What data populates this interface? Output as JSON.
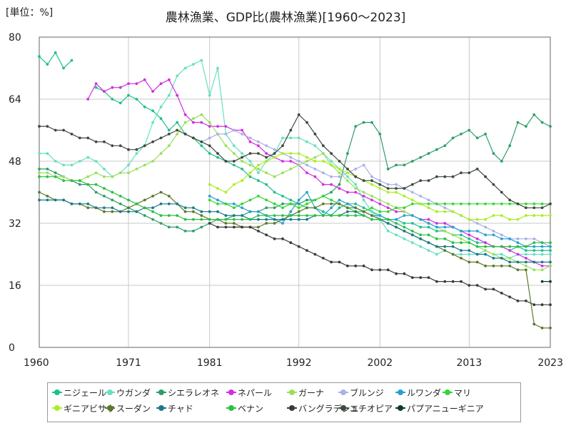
{
  "unit_label": "[単位：%]",
  "chart_data": {
    "type": "line",
    "title": "農林漁業、GDP比(農林漁業)[1960〜2023]",
    "xlabel": "",
    "ylabel": "",
    "xlim": [
      1960,
      2023
    ],
    "ylim": [
      0,
      80
    ],
    "x_ticks": [
      1960,
      1971,
      1981,
      1992,
      2002,
      2013,
      2023
    ],
    "y_ticks": [
      0,
      16,
      32,
      48,
      64,
      80
    ],
    "grid": true,
    "legend_position": "bottom",
    "series": [
      {
        "name": "ニジェール",
        "color": "#1fbf8f",
        "start": 1960,
        "values": [
          75,
          73,
          76,
          72,
          74,
          null,
          null,
          67,
          66,
          64,
          63,
          65,
          64,
          62,
          61,
          59,
          56,
          58,
          55,
          54,
          52,
          50,
          49,
          48,
          47,
          46,
          44,
          43,
          42,
          40,
          39,
          38,
          37,
          36,
          36,
          35,
          34,
          36,
          37,
          37,
          36,
          35,
          34,
          33,
          33,
          32,
          32,
          31,
          31,
          30,
          30,
          29,
          29,
          28,
          27,
          27,
          26,
          26,
          25,
          26,
          25,
          25,
          25,
          25
        ]
      },
      {
        "name": "ウガンダ",
        "color": "#66e0c0",
        "start": 1960,
        "values": [
          50,
          50,
          48,
          47,
          47,
          48,
          49,
          48,
          46,
          44,
          45,
          47,
          50,
          52,
          58,
          62,
          65,
          70,
          72,
          73,
          74,
          65,
          72,
          55,
          52,
          50,
          48,
          45,
          48,
          50,
          54,
          54,
          54,
          53,
          52,
          50,
          48,
          46,
          44,
          42,
          38,
          35,
          33,
          30,
          29,
          28,
          27,
          26,
          25,
          24,
          25,
          24,
          24,
          24,
          24,
          25,
          24,
          24,
          23,
          24,
          24,
          24,
          24,
          24
        ]
      },
      {
        "name": "シエラレオネ",
        "color": "#2e9e6a",
        "start": 1960,
        "values": [
          46,
          46,
          45,
          44,
          43,
          42,
          42,
          40,
          39,
          38,
          37,
          36,
          35,
          34,
          33,
          32,
          31,
          31,
          30,
          30,
          31,
          32,
          33,
          33,
          34,
          34,
          35,
          35,
          36,
          36,
          37,
          37,
          37,
          38,
          38,
          39,
          40,
          42,
          50,
          57,
          58,
          58,
          55,
          46,
          47,
          47,
          48,
          49,
          50,
          51,
          52,
          54,
          55,
          56,
          54,
          55,
          50,
          48,
          52,
          58,
          57,
          60,
          58,
          57
        ]
      },
      {
        "name": "ネパール",
        "color": "#d030e0",
        "start": 1960,
        "values": [
          null,
          null,
          null,
          null,
          null,
          null,
          64,
          68,
          66,
          67,
          67,
          68,
          68,
          69,
          66,
          68,
          69,
          65,
          60,
          58,
          58,
          57,
          57,
          57,
          56,
          56,
          53,
          52,
          50,
          49,
          48,
          48,
          47,
          45,
          44,
          42,
          42,
          41,
          40,
          40,
          39,
          38,
          37,
          36,
          35,
          35,
          34,
          33,
          33,
          32,
          32,
          31,
          30,
          29,
          28,
          27,
          26,
          26,
          25,
          24,
          23,
          22,
          21,
          21
        ]
      },
      {
        "name": "ガーナ",
        "color": "#99e05a",
        "start": 1960,
        "values": [
          45,
          45,
          44,
          44,
          43,
          43,
          44,
          45,
          44,
          44,
          45,
          45,
          46,
          47,
          48,
          50,
          52,
          55,
          58,
          59,
          60,
          58,
          55,
          52,
          50,
          48,
          47,
          46,
          45,
          44,
          45,
          46,
          47,
          48,
          49,
          50,
          47,
          45,
          43,
          41,
          40,
          39,
          38,
          37,
          36,
          35,
          34,
          33,
          32,
          31,
          30,
          29,
          28,
          27,
          26,
          25,
          24,
          23,
          23,
          22,
          21,
          20,
          20,
          21
        ]
      },
      {
        "name": "ブルンジ",
        "color": "#aab0e8",
        "start": 1960,
        "values": [
          null,
          null,
          null,
          null,
          null,
          null,
          null,
          null,
          null,
          null,
          null,
          null,
          null,
          null,
          null,
          null,
          null,
          null,
          null,
          null,
          53,
          54,
          55,
          55,
          56,
          55,
          54,
          53,
          52,
          51,
          50,
          49,
          48,
          47,
          46,
          45,
          44,
          44,
          45,
          46,
          47,
          44,
          43,
          42,
          42,
          41,
          40,
          39,
          38,
          37,
          36,
          35,
          34,
          33,
          32,
          31,
          30,
          29,
          28,
          28,
          28,
          28,
          27,
          26
        ]
      },
      {
        "name": "ルワンダ",
        "color": "#2a9fd0",
        "start": 1960,
        "values": [
          null,
          null,
          null,
          null,
          null,
          null,
          null,
          null,
          null,
          null,
          null,
          null,
          null,
          null,
          null,
          null,
          null,
          null,
          null,
          null,
          null,
          39,
          38,
          37,
          37,
          36,
          35,
          35,
          34,
          33,
          32,
          35,
          38,
          40,
          36,
          34,
          36,
          38,
          37,
          36,
          35,
          34,
          34,
          33,
          33,
          34,
          34,
          33,
          32,
          31,
          31,
          31,
          30,
          30,
          30,
          29,
          29,
          28,
          28,
          27,
          26,
          26,
          26,
          26
        ]
      },
      {
        "name": "マリ",
        "color": "#33d633",
        "start": 1960,
        "values": [
          null,
          null,
          null,
          null,
          null,
          null,
          null,
          null,
          null,
          null,
          null,
          null,
          null,
          null,
          null,
          null,
          null,
          null,
          null,
          null,
          null,
          38,
          37,
          37,
          36,
          37,
          38,
          39,
          38,
          37,
          36,
          37,
          36,
          37,
          38,
          39,
          38,
          37,
          36,
          35,
          35,
          36,
          35,
          35,
          36,
          36,
          37,
          37,
          37,
          37,
          37,
          37,
          37,
          37,
          37,
          37,
          37,
          37,
          37,
          37,
          37,
          37,
          37,
          37
        ]
      },
      {
        "name": "ギニアビサウ",
        "color": "#aaee22",
        "start": 1960,
        "values": [
          null,
          null,
          null,
          null,
          null,
          null,
          null,
          null,
          null,
          null,
          null,
          null,
          null,
          null,
          null,
          null,
          null,
          null,
          null,
          null,
          null,
          42,
          41,
          40,
          42,
          43,
          45,
          47,
          48,
          49,
          50,
          50,
          50,
          49,
          48,
          48,
          47,
          46,
          45,
          44,
          43,
          42,
          41,
          40,
          40,
          39,
          38,
          37,
          36,
          35,
          35,
          35,
          34,
          33,
          33,
          33,
          34,
          34,
          33,
          33,
          34,
          34,
          34,
          34
        ]
      },
      {
        "name": "スーダン",
        "color": "#5a7a2a",
        "start": 1960,
        "values": [
          40,
          39,
          38,
          38,
          37,
          37,
          36,
          36,
          35,
          35,
          35,
          36,
          37,
          38,
          39,
          40,
          39,
          37,
          35,
          35,
          34,
          33,
          33,
          32,
          32,
          31,
          31,
          31,
          32,
          32,
          33,
          34,
          35,
          36,
          36,
          37,
          37,
          37,
          36,
          36,
          35,
          34,
          33,
          32,
          31,
          30,
          29,
          28,
          27,
          26,
          25,
          24,
          23,
          22,
          22,
          21,
          21,
          21,
          21,
          20,
          20,
          6,
          5,
          5
        ]
      },
      {
        "name": "チャド",
        "color": "#1a7a8a",
        "start": 1960,
        "values": [
          38,
          38,
          38,
          38,
          37,
          37,
          37,
          36,
          36,
          36,
          35,
          35,
          35,
          36,
          36,
          37,
          37,
          37,
          36,
          36,
          35,
          35,
          35,
          34,
          34,
          34,
          33,
          33,
          33,
          33,
          33,
          33,
          33,
          33,
          34,
          34,
          34,
          34,
          35,
          35,
          34,
          33,
          33,
          32,
          31,
          30,
          29,
          28,
          27,
          26,
          26,
          26,
          25,
          25,
          24,
          24,
          23,
          23,
          22,
          22,
          22,
          22,
          22,
          22
        ]
      },
      {
        "name": "ベナン",
        "color": "#28c040",
        "start": 1960,
        "values": [
          44,
          44,
          44,
          43,
          43,
          43,
          42,
          42,
          41,
          40,
          39,
          38,
          37,
          36,
          35,
          34,
          34,
          34,
          33,
          33,
          33,
          33,
          33,
          33,
          33,
          33,
          33,
          34,
          34,
          34,
          34,
          34,
          34,
          34,
          34,
          34,
          34,
          34,
          34,
          34,
          34,
          33,
          33,
          33,
          32,
          31,
          30,
          29,
          29,
          28,
          28,
          27,
          27,
          27,
          26,
          26,
          26,
          26,
          26,
          26,
          26,
          27,
          27,
          27
        ]
      },
      {
        "name": "バングラデシュ",
        "color": "#3a3a3a",
        "start": 1960,
        "values": [
          null,
          null,
          null,
          null,
          null,
          null,
          null,
          null,
          null,
          null,
          null,
          null,
          null,
          null,
          null,
          null,
          null,
          null,
          null,
          null,
          null,
          32,
          31,
          31,
          31,
          31,
          31,
          30,
          29,
          28,
          28,
          27,
          26,
          25,
          24,
          23,
          22,
          22,
          21,
          21,
          21,
          20,
          20,
          20,
          19,
          19,
          18,
          18,
          18,
          17,
          17,
          17,
          17,
          16,
          16,
          15,
          15,
          14,
          13,
          12,
          12,
          11,
          11,
          11
        ]
      },
      {
        "name": "エチオピア",
        "color": "#3d4a3d",
        "start": 1960,
        "values": [
          57,
          57,
          56,
          56,
          55,
          54,
          54,
          53,
          53,
          52,
          52,
          51,
          51,
          52,
          53,
          54,
          55,
          56,
          55,
          54,
          53,
          52,
          50,
          48,
          48,
          49,
          50,
          50,
          49,
          50,
          52,
          56,
          60,
          58,
          55,
          52,
          50,
          48,
          46,
          44,
          43,
          43,
          42,
          41,
          41,
          41,
          42,
          43,
          43,
          44,
          44,
          44,
          45,
          45,
          46,
          44,
          42,
          40,
          38,
          37,
          36,
          36,
          36,
          37
        ]
      },
      {
        "name": "パプアニューギニア",
        "color": "#0a3a2a",
        "start": 1960,
        "values": [
          null,
          null,
          null,
          null,
          null,
          null,
          null,
          null,
          null,
          null,
          null,
          null,
          null,
          null,
          null,
          null,
          null,
          null,
          null,
          null,
          null,
          null,
          null,
          null,
          null,
          null,
          null,
          null,
          null,
          null,
          null,
          null,
          null,
          null,
          null,
          null,
          null,
          null,
          null,
          null,
          null,
          null,
          null,
          null,
          null,
          null,
          null,
          null,
          null,
          null,
          null,
          null,
          null,
          null,
          null,
          null,
          null,
          null,
          null,
          null,
          null,
          null,
          17,
          17
        ]
      }
    ]
  }
}
